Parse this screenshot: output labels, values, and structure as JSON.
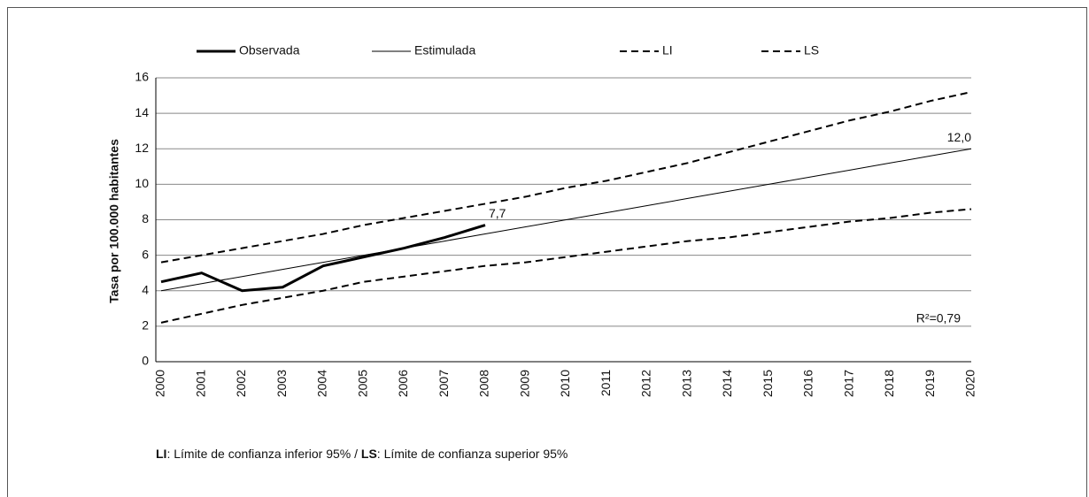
{
  "chart_data": {
    "type": "line",
    "y_label": "Tasa por 100.000 habitantes",
    "categories": [
      "2000",
      "2001",
      "2002",
      "2003",
      "2004",
      "2005",
      "2006",
      "2007",
      "2008",
      "2009",
      "2010",
      "2011",
      "2012",
      "2013",
      "2014",
      "2015",
      "2016",
      "2017",
      "2018",
      "2019",
      "2020"
    ],
    "series": [
      {
        "name": "Observada",
        "color": "#000000",
        "line_width": 3,
        "dashed": false,
        "values": [
          4.5,
          5.0,
          4.0,
          4.2,
          5.4,
          5.9,
          6.4,
          7.0,
          7.7,
          null,
          null,
          null,
          null,
          null,
          null,
          null,
          null,
          null,
          null,
          null,
          null
        ],
        "value_labels": [
          null,
          null,
          null,
          null,
          null,
          null,
          null,
          null,
          "7,7",
          null,
          null,
          null,
          null,
          null,
          null,
          null,
          null,
          null,
          null,
          null,
          null
        ]
      },
      {
        "name": "Estimulada",
        "color": "#000000",
        "line_width": 1,
        "dashed": false,
        "values": [
          4.0,
          4.4,
          4.8,
          5.2,
          5.6,
          6.0,
          6.4,
          6.8,
          7.2,
          7.6,
          8.0,
          8.4,
          8.8,
          9.2,
          9.6,
          10.0,
          10.4,
          10.8,
          11.2,
          11.6,
          12.0
        ],
        "value_labels": [
          null,
          null,
          null,
          null,
          null,
          null,
          null,
          null,
          null,
          null,
          null,
          null,
          null,
          null,
          null,
          null,
          null,
          null,
          null,
          null,
          "12,0"
        ]
      },
      {
        "name": "LI",
        "color": "#000000",
        "line_width": 2,
        "dashed": true,
        "values": [
          2.2,
          2.7,
          3.2,
          3.6,
          4.0,
          4.5,
          4.8,
          5.1,
          5.4,
          5.6,
          5.9,
          6.2,
          6.5,
          6.8,
          7.0,
          7.3,
          7.6,
          7.9,
          8.1,
          8.4,
          8.6
        ]
      },
      {
        "name": "LS",
        "color": "#000000",
        "line_width": 2,
        "dashed": true,
        "values": [
          5.6,
          6.0,
          6.4,
          6.8,
          7.2,
          7.7,
          8.1,
          8.5,
          8.9,
          9.3,
          9.8,
          10.2,
          10.7,
          11.2,
          11.8,
          12.4,
          13.0,
          13.6,
          14.1,
          14.7,
          15.2
        ]
      }
    ],
    "annotation": "R²=0,79",
    "footnote": [
      "LI",
      ": Límite de confianza inferior 95% / ",
      "LS",
      ": Límite de confianza superior 95%"
    ],
    "ylim": [
      0,
      16
    ],
    "yticks": [
      0,
      2,
      4,
      6,
      8,
      10,
      12,
      14,
      16
    ],
    "grid": true
  }
}
